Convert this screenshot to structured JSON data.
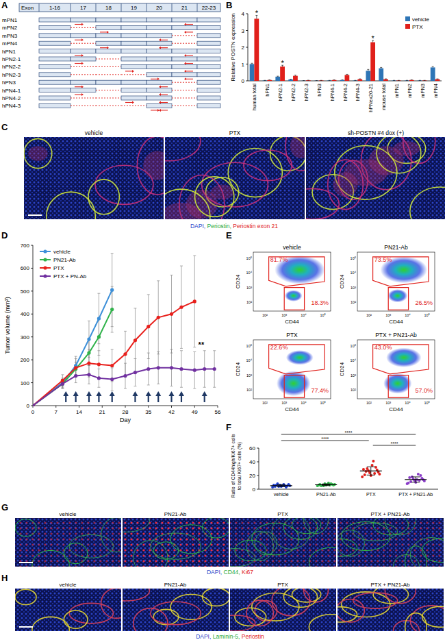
{
  "panel_labels": [
    "A",
    "B",
    "C",
    "D",
    "E",
    "F",
    "G",
    "H"
  ],
  "figure": {
    "A": {
      "header": {
        "label": "Exon",
        "columns": [
          "1-16",
          "17",
          "18",
          "19",
          "20",
          "21",
          "22-23"
        ]
      },
      "isoforms": [
        {
          "name": "mPN1",
          "exons": [
            "17",
            "18",
            "19",
            "20",
            "21"
          ]
        },
        {
          "name": "mPN2",
          "exons": [
            "18",
            "19",
            "20",
            "21"
          ]
        },
        {
          "name": "mPN3",
          "exons": [
            "17",
            "18",
            "19",
            "20"
          ]
        },
        {
          "name": "mPN4",
          "exons": [
            "18",
            "19",
            "20"
          ]
        },
        {
          "name": "hPN1",
          "exons": [
            "17",
            "18",
            "19",
            "20",
            "21"
          ]
        },
        {
          "name": "hPN2-1",
          "exons": [
            "17",
            "19",
            "20",
            "21"
          ]
        },
        {
          "name": "hPN2-2",
          "exons": [
            "19",
            "20",
            "21"
          ]
        },
        {
          "name": "hPN2-3",
          "exons": [
            "20",
            "21"
          ]
        },
        {
          "name": "hPN3",
          "exons": [
            "17",
            "18",
            "19",
            "20"
          ]
        },
        {
          "name": "hPN4-1",
          "exons": [
            "17",
            "19",
            "20"
          ]
        },
        {
          "name": "hPN4-2",
          "exons": [
            "19",
            "20"
          ]
        },
        {
          "name": "hPN4-3",
          "exons": [
            "20"
          ]
        }
      ]
    },
    "C": {
      "titles": [
        "vehicle",
        "PTX",
        "sh-POSTN #4 dox (+)"
      ],
      "caption": [
        {
          "text": "DAPI, ",
          "color": "#2a44c8"
        },
        {
          "text": "Periostin, ",
          "color": "#1fa83a"
        },
        {
          "text": "Periostin exon 21",
          "color": "#e0201b"
        }
      ]
    },
    "E": {
      "x_label": "CD44",
      "y_label": "CD24",
      "ticks": [
        "10²",
        "10³",
        "10⁴",
        "10⁵"
      ],
      "plots": [
        {
          "title": "vehicle",
          "upper": "81.7%",
          "lower": "18.3%"
        },
        {
          "title": "PN21-Ab",
          "upper": "73.5%",
          "lower": "26.5%"
        },
        {
          "title": "PTX",
          "upper": "22.6%",
          "lower": "77.4%"
        },
        {
          "title": "PTX + PN21-Ab",
          "upper": "43.0%",
          "lower": "57.0%"
        }
      ]
    },
    "G": {
      "titles": [
        "vehicle",
        "PN21-Ab",
        "PTX",
        "PTX + PN21-Ab"
      ],
      "caption": [
        {
          "text": "DAPI, ",
          "color": "#2a44c8"
        },
        {
          "text": "CD44, ",
          "color": "#1fa83a"
        },
        {
          "text": "Ki67",
          "color": "#e0201b"
        }
      ]
    },
    "H": {
      "titles": [
        "vehicle",
        "PN21-Ab",
        "PTX",
        "PTX + PN21-Ab"
      ],
      "caption": [
        {
          "text": "DAPI, ",
          "color": "#2a44c8"
        },
        {
          "text": "Laminin-5, ",
          "color": "#1fa83a"
        },
        {
          "text": "Periostin",
          "color": "#e0201b"
        }
      ]
    }
  },
  "chart_data": [
    {
      "type": "bar",
      "ylabel": "Relative POSTN expression",
      "categories": [
        "human total",
        "hPN1",
        "hPN2-1",
        "hPN2-2",
        "hPN2-3",
        "hPN3",
        "hPN4-1",
        "hPN4-2",
        "hPN4-3",
        "hPNex20-21",
        "mouse total",
        "mPN1",
        "mPN2",
        "mPN3",
        "mPN4"
      ],
      "series": [
        {
          "name": "vehicle",
          "color": "#2e75b6",
          "values": [
            1.0,
            0.02,
            0.25,
            0.08,
            0.01,
            0.01,
            0.02,
            0.05,
            0.02,
            0.6,
            0.75,
            0.02,
            0.02,
            0.02,
            0.8
          ],
          "errors": [
            0.05,
            0.01,
            0.03,
            0.02,
            0.005,
            0.005,
            0.01,
            0.01,
            0.01,
            0.08,
            0.05,
            0.01,
            0.01,
            0.01,
            0.05
          ]
        },
        {
          "name": "PTX",
          "color": "#e0201b",
          "values": [
            3.7,
            0.05,
            0.85,
            0.3,
            0.03,
            0.02,
            0.05,
            0.35,
            0.1,
            2.3,
            0.1,
            0.02,
            0.05,
            0.02,
            0.1
          ],
          "errors": [
            0.2,
            0.01,
            0.08,
            0.04,
            0.01,
            0.01,
            0.01,
            0.04,
            0.02,
            0.1,
            0.02,
            0.01,
            0.01,
            0.01,
            0.02
          ]
        }
      ],
      "ylim": [
        0,
        4
      ],
      "yticks": [
        0,
        1,
        2,
        3,
        4
      ],
      "legend": "top-right",
      "annotations": [
        {
          "text": "*",
          "category": "human total"
        },
        {
          "text": "*",
          "category": "hPN2-1"
        },
        {
          "text": "*",
          "category": "hPNex20-21"
        }
      ]
    },
    {
      "type": "line",
      "xlabel": "Day",
      "ylabel": "Tumor volume (mm³)",
      "xlim": [
        0,
        56
      ],
      "xticks": [
        0,
        7,
        14,
        21,
        28,
        35,
        42,
        49,
        56
      ],
      "ylim": [
        0,
        700
      ],
      "yticks": [
        0,
        100,
        200,
        300,
        400,
        500,
        600,
        700
      ],
      "legend": "top-left",
      "marker": "circle",
      "series": [
        {
          "name": "vehicle",
          "color": "#3c8fd8",
          "x": [
            0,
            9,
            13,
            17,
            20,
            24
          ],
          "values": [
            0,
            100,
            175,
            290,
            380,
            505
          ],
          "errors": [
            0,
            20,
            40,
            80,
            110,
            160
          ]
        },
        {
          "name": "PN21-Ab",
          "color": "#2fb24a",
          "x": [
            0,
            9,
            13,
            17,
            20,
            24
          ],
          "values": [
            0,
            95,
            160,
            230,
            300,
            420
          ],
          "errors": [
            0,
            20,
            30,
            55,
            80,
            100
          ]
        },
        {
          "name": "PTX",
          "color": "#e8201c",
          "x": [
            0,
            9,
            13,
            17,
            20,
            24,
            28,
            31,
            35,
            38,
            42,
            45,
            49
          ],
          "values": [
            0,
            110,
            165,
            185,
            180,
            175,
            225,
            285,
            345,
            385,
            400,
            430,
            455
          ],
          "errors": [
            0,
            25,
            40,
            60,
            60,
            70,
            100,
            140,
            140,
            160,
            170,
            180,
            200
          ]
        },
        {
          "name": "PTX + PN-Ab",
          "color": "#7030a0",
          "x": [
            0,
            9,
            13,
            17,
            20,
            24,
            28,
            31,
            35,
            38,
            42,
            45,
            49,
            52,
            55
          ],
          "values": [
            0,
            95,
            130,
            135,
            120,
            115,
            130,
            145,
            160,
            165,
            165,
            160,
            155,
            160,
            160
          ],
          "errors": [
            0,
            20,
            30,
            40,
            40,
            50,
            55,
            60,
            70,
            70,
            80,
            80,
            80,
            80,
            80
          ]
        }
      ],
      "treatment_days": [
        10,
        13,
        17,
        20,
        24,
        31,
        35,
        38,
        42,
        45,
        52
      ],
      "annotations": [
        {
          "text": "**",
          "x": 51,
          "y": 255
        }
      ]
    },
    {
      "type": "dot",
      "ylabel": [
        "Ratio of CD44high/Ki67+ cells",
        "to total Ki67+ cells (%)"
      ],
      "categories": [
        "vehicle",
        "PN21-Ab",
        "PTX",
        "PTX + PN21-Ab"
      ],
      "colors": [
        "#1f3fd0",
        "#2fb24a",
        "#e0201b",
        "#8a3cc8"
      ],
      "points": [
        [
          3,
          4,
          5,
          6,
          7,
          4,
          5,
          8,
          3,
          6,
          5,
          4,
          7,
          6,
          5
        ],
        [
          5,
          6,
          7,
          8,
          6,
          5,
          7,
          6,
          8,
          5,
          6,
          7,
          9,
          6,
          7
        ],
        [
          18,
          20,
          22,
          24,
          25,
          27,
          28,
          30,
          32,
          26,
          23,
          21,
          41,
          29,
          35
        ],
        [
          8,
          10,
          12,
          13,
          14,
          15,
          16,
          18,
          20,
          11,
          13,
          17,
          22,
          9,
          14
        ]
      ],
      "means": [
        5.2,
        6.5,
        26.7,
        14.1
      ],
      "sd": [
        1.5,
        1.2,
        6.0,
        3.9
      ],
      "ylim": [
        0,
        60
      ],
      "yticks": [
        0,
        20,
        40,
        60
      ],
      "comparisons": [
        {
          "from": "vehicle",
          "to": "PTX + PN21-Ab",
          "text": "****"
        },
        {
          "from": "vehicle",
          "to": "PTX",
          "text": "****"
        },
        {
          "from": "PTX",
          "to": "PTX + PN21-Ab",
          "text": "****"
        }
      ]
    }
  ]
}
